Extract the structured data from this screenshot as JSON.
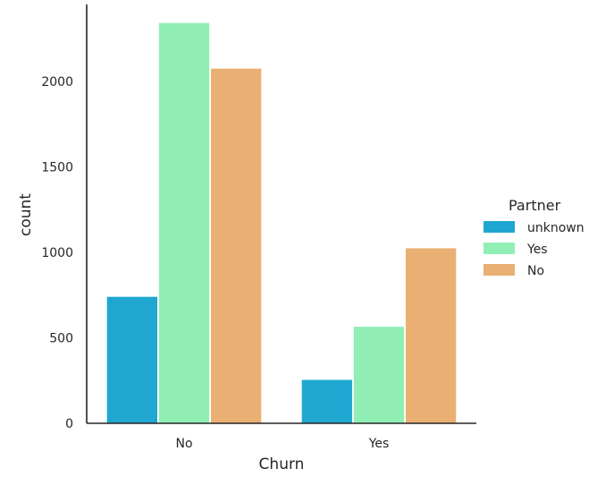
{
  "chart_data": {
    "type": "bar",
    "xlabel": "Churn",
    "ylabel": "count",
    "categories": [
      "No",
      "Yes"
    ],
    "ylim": [
      0,
      2450
    ],
    "yticks": [
      0,
      500,
      1000,
      1500,
      2000
    ],
    "ytick_labels": [
      "0",
      "500",
      "1000",
      "1500",
      "2000"
    ],
    "legend": {
      "title": "Partner",
      "placement": "center-right, outside plot"
    },
    "series": [
      {
        "name": "unknown",
        "color": "#1fa7d1",
        "values": [
          742,
          256
        ]
      },
      {
        "name": "Yes",
        "color": "#91efb5",
        "values": [
          2344,
          567
        ]
      },
      {
        "name": "No",
        "color": "#eab073",
        "values": [
          2077,
          1026
        ]
      }
    ],
    "grid": false
  }
}
